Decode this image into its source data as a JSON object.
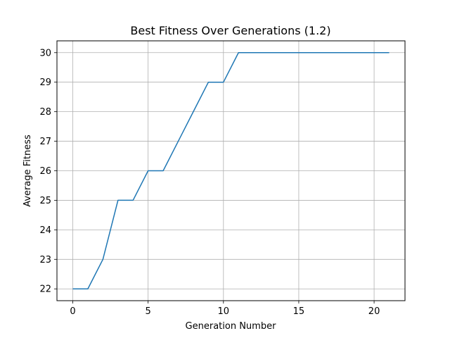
{
  "chart_data": {
    "type": "line",
    "title": "Best Fitness Over Generations (1.2)",
    "xlabel": "Generation Number",
    "ylabel": "Average Fitness",
    "xlim": [
      -1.05,
      22.05
    ],
    "ylim": [
      21.6,
      30.4
    ],
    "xticks": [
      0,
      5,
      10,
      15,
      20
    ],
    "yticks": [
      22,
      23,
      24,
      25,
      26,
      27,
      28,
      29,
      30
    ],
    "grid": true,
    "legend": "none",
    "series": [
      {
        "color": "#1f77b4",
        "x": [
          0,
          1,
          2,
          3,
          4,
          5,
          6,
          7,
          8,
          9,
          10,
          11,
          12,
          13,
          14,
          15,
          16,
          17,
          18,
          19,
          20,
          21
        ],
        "y": [
          22,
          22,
          23,
          25,
          25,
          26,
          26,
          27,
          28,
          29,
          29,
          30,
          30,
          30,
          30,
          30,
          30,
          30,
          30,
          30,
          30,
          30
        ]
      }
    ]
  }
}
